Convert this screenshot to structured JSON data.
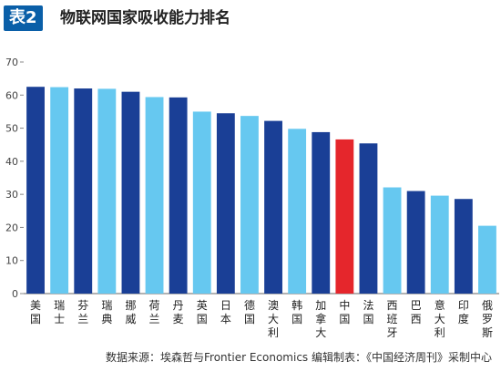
{
  "header": {
    "tag": "表2",
    "title": "物联网国家吸收能力排名"
  },
  "source": "数据来源：埃森哲与Frontier Economics 编辑制表：《中国经济周刊》采制中心",
  "colors": {
    "dark": "#1a3f96",
    "light": "#66c8f0",
    "highlight": "#e5262c",
    "tag_bg": "#0a5fa8"
  },
  "chart_data": {
    "type": "bar",
    "title": "物联网国家吸收能力排名",
    "ylim": [
      0,
      70
    ],
    "yticks": [
      0,
      10,
      20,
      30,
      40,
      50,
      60,
      70
    ],
    "grid": false,
    "categories": [
      "美国",
      "瑞士",
      "芬兰",
      "瑞典",
      "挪威",
      "荷兰",
      "丹麦",
      "英国",
      "日本",
      "德国",
      "澳大利亚",
      "韩国",
      "加拿大",
      "中国",
      "法国",
      "西班牙",
      "巴西",
      "意大利",
      "印度",
      "俄罗斯"
    ],
    "values": [
      62.5,
      62.4,
      62.0,
      61.9,
      61.0,
      59.4,
      59.3,
      55.0,
      54.5,
      53.7,
      52.2,
      49.8,
      48.8,
      46.6,
      45.4,
      32.1,
      31.0,
      29.6,
      28.6,
      20.5
    ],
    "bar_colors": [
      "dark",
      "light",
      "dark",
      "light",
      "dark",
      "light",
      "dark",
      "light",
      "dark",
      "light",
      "dark",
      "light",
      "dark",
      "highlight",
      "dark",
      "light",
      "dark",
      "light",
      "dark",
      "light"
    ]
  }
}
